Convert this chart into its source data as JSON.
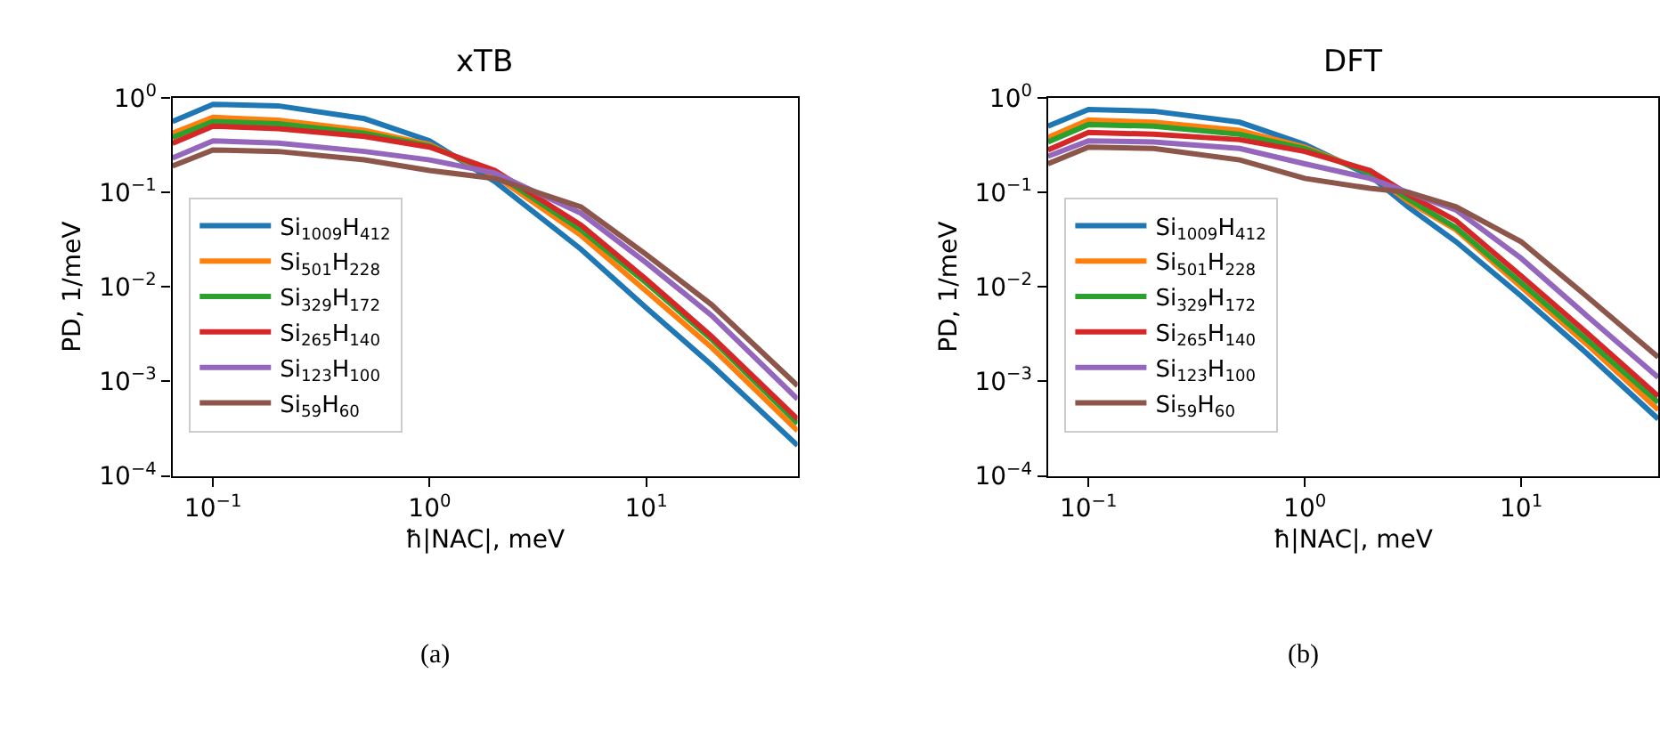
{
  "chart_data": [
    {
      "type": "line",
      "title": "xTB",
      "xlabel": "ħ|NAC|, meV",
      "ylabel": "PD, 1/meV",
      "log": "xy",
      "grid": false,
      "legend": "left",
      "marker": "none",
      "line_style": "solid",
      "x": [
        0.065,
        0.1,
        0.2,
        0.5,
        1,
        2,
        5,
        10,
        20,
        50
      ],
      "xlim": [
        0.065,
        50
      ],
      "ylim": [
        0.0001,
        1
      ],
      "xticks": [
        {
          "value": 0.1,
          "label": "10$^{−1}$"
        },
        {
          "value": 1,
          "label": "10$^{0}$"
        },
        {
          "value": 10,
          "label": "10$^{1}$"
        }
      ],
      "yticks": [
        {
          "value": 0.0001,
          "label": "10$^{−4}$"
        },
        {
          "value": 0.001,
          "label": "10$^{−3}$"
        },
        {
          "value": 0.01,
          "label": "10$^{−2}$"
        },
        {
          "value": 0.1,
          "label": "10$^{−1}$"
        },
        {
          "value": 1,
          "label": "10$^{0}$"
        }
      ],
      "annotations": [
        "(a)"
      ],
      "series": [
        {
          "name": "Si$_{1009}$H$_{412}$",
          "color": "#1f77b4",
          "values": [
            0.56,
            0.85,
            0.82,
            0.6,
            0.35,
            0.13,
            0.025,
            0.006,
            0.0015,
            0.00021
          ]
        },
        {
          "name": "Si$_{501}$H$_{228}$",
          "color": "#ff7f0e",
          "values": [
            0.42,
            0.62,
            0.58,
            0.45,
            0.32,
            0.15,
            0.035,
            0.009,
            0.0023,
            0.0003
          ]
        },
        {
          "name": "Si$_{329}$H$_{172}$",
          "color": "#2ca02c",
          "values": [
            0.38,
            0.56,
            0.53,
            0.42,
            0.31,
            0.16,
            0.04,
            0.011,
            0.0028,
            0.00036
          ]
        },
        {
          "name": "Si$_{265}$H$_{140}$",
          "color": "#d62728",
          "values": [
            0.33,
            0.5,
            0.47,
            0.39,
            0.3,
            0.17,
            0.045,
            0.012,
            0.003,
            0.0004
          ]
        },
        {
          "name": "Si$_{123}$H$_{100}$",
          "color": "#9467bd",
          "values": [
            0.23,
            0.35,
            0.33,
            0.27,
            0.22,
            0.16,
            0.06,
            0.018,
            0.005,
            0.00065
          ]
        },
        {
          "name": "Si$_{59}$H$_{60}$",
          "color": "#8c564b",
          "values": [
            0.19,
            0.28,
            0.27,
            0.22,
            0.17,
            0.14,
            0.07,
            0.022,
            0.0065,
            0.0009
          ]
        }
      ]
    },
    {
      "type": "line",
      "title": "DFT",
      "xlabel": "ħ|NAC|, meV",
      "ylabel": "PD, 1/meV",
      "log": "xy",
      "grid": false,
      "legend": "left",
      "marker": "none",
      "line_style": "solid",
      "x": [
        0.065,
        0.1,
        0.2,
        0.5,
        1,
        2,
        3,
        5,
        10,
        20,
        43
      ],
      "xlim": [
        0.065,
        43
      ],
      "ylim": [
        0.0001,
        1
      ],
      "xticks": [
        {
          "value": 0.1,
          "label": "10$^{−1}$"
        },
        {
          "value": 1,
          "label": "10$^{0}$"
        },
        {
          "value": 10,
          "label": "10$^{1}$"
        }
      ],
      "yticks": [
        {
          "value": 0.0001,
          "label": "10$^{−4}$"
        },
        {
          "value": 0.001,
          "label": "10$^{−3}$"
        },
        {
          "value": 0.01,
          "label": "10$^{−2}$"
        },
        {
          "value": 0.1,
          "label": "10$^{−1}$"
        },
        {
          "value": 1,
          "label": "10$^{0}$"
        }
      ],
      "annotations": [
        "(b)"
      ],
      "series": [
        {
          "name": "Si$_{1009}$H$_{412}$",
          "color": "#1f77b4",
          "values": [
            0.5,
            0.75,
            0.72,
            0.55,
            0.32,
            0.15,
            0.07,
            0.03,
            0.008,
            0.002,
            0.0004
          ]
        },
        {
          "name": "Si$_{501}$H$_{228}$",
          "color": "#ff7f0e",
          "values": [
            0.38,
            0.58,
            0.55,
            0.45,
            0.3,
            0.16,
            0.08,
            0.04,
            0.01,
            0.0025,
            0.0005
          ]
        },
        {
          "name": "Si$_{329}$H$_{172}$",
          "color": "#2ca02c",
          "values": [
            0.34,
            0.52,
            0.5,
            0.41,
            0.29,
            0.16,
            0.085,
            0.042,
            0.011,
            0.0028,
            0.0006
          ]
        },
        {
          "name": "Si$_{265}$H$_{140}$",
          "color": "#d62728",
          "values": [
            0.28,
            0.43,
            0.41,
            0.36,
            0.27,
            0.17,
            0.095,
            0.05,
            0.013,
            0.0033,
            0.0007
          ]
        },
        {
          "name": "Si$_{123}$H$_{100}$",
          "color": "#9467bd",
          "values": [
            0.24,
            0.35,
            0.34,
            0.29,
            0.2,
            0.14,
            0.1,
            0.065,
            0.02,
            0.005,
            0.0011
          ]
        },
        {
          "name": "Si$_{59}$H$_{60}$",
          "color": "#8c564b",
          "values": [
            0.2,
            0.3,
            0.29,
            0.22,
            0.14,
            0.11,
            0.1,
            0.07,
            0.03,
            0.008,
            0.0018
          ]
        }
      ]
    }
  ]
}
